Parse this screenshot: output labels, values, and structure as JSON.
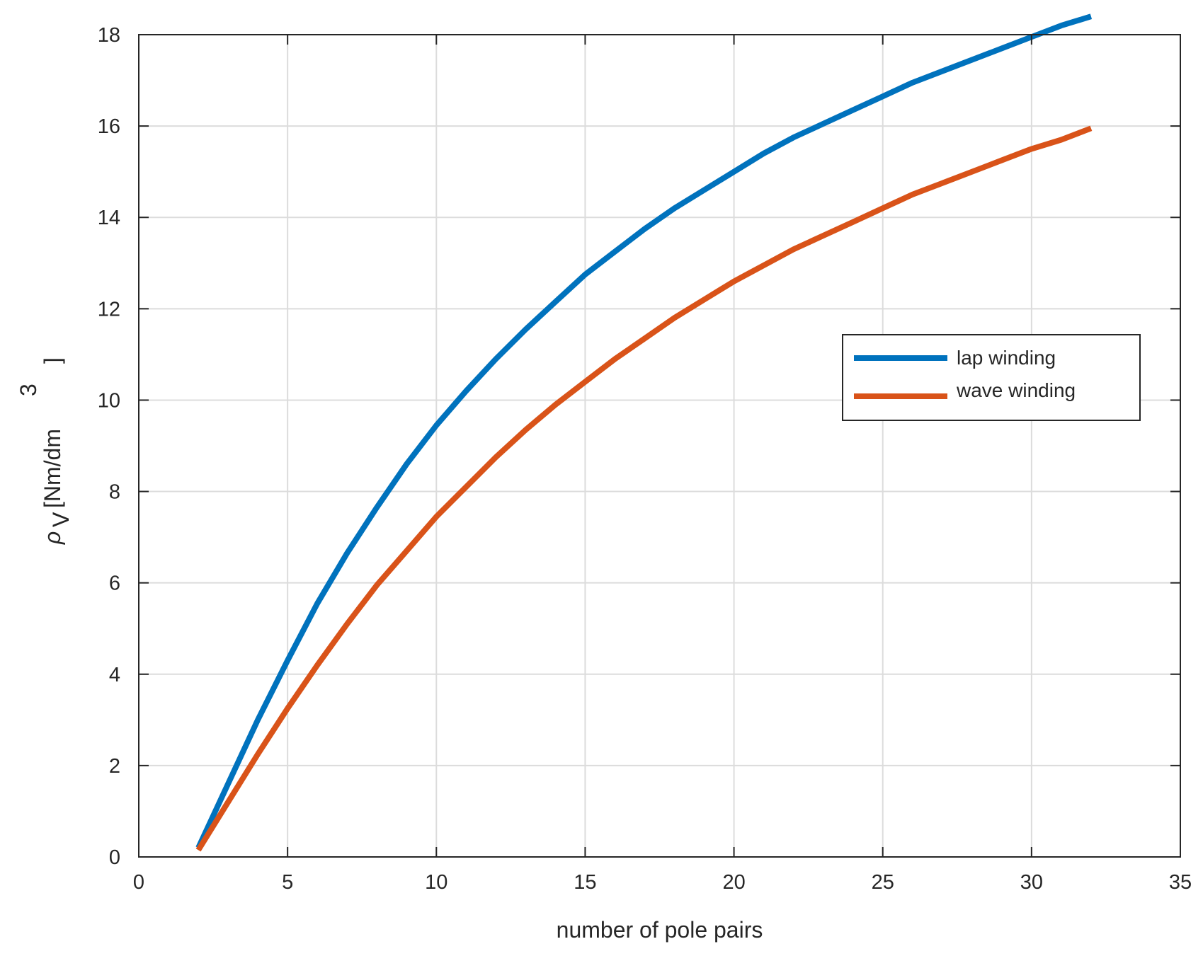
{
  "chart_data": {
    "type": "line",
    "title": "",
    "xlabel": "number of pole pairs",
    "ylabel": {
      "symbol": "ρ",
      "subscript": "V",
      "unit_open": "[Nm/dm",
      "unit_exponent": "3",
      "unit_close": "]"
    },
    "xlim": [
      0,
      35
    ],
    "ylim": [
      0,
      18
    ],
    "xticks": [
      0,
      5,
      10,
      15,
      20,
      25,
      30,
      35
    ],
    "yticks": [
      0,
      2,
      4,
      6,
      8,
      10,
      12,
      14,
      16,
      18
    ],
    "xtick_labels": [
      "0",
      "5",
      "10",
      "15",
      "20",
      "25",
      "30",
      "35"
    ],
    "ytick_labels": [
      "0",
      "2",
      "4",
      "6",
      "8",
      "10",
      "12",
      "14",
      "16",
      "18"
    ],
    "grid": true,
    "legend_position": "right",
    "series": [
      {
        "name": "lap winding",
        "color": "#0072BD",
        "x": [
          2,
          3,
          4,
          5,
          6,
          7,
          8,
          9,
          10,
          11,
          12,
          13,
          14,
          15,
          16,
          17,
          18,
          19,
          20,
          21,
          22,
          23,
          24,
          25,
          26,
          27,
          28,
          29,
          30,
          31,
          32
        ],
        "y": [
          0.2,
          1.6,
          3.0,
          4.3,
          5.55,
          6.65,
          7.65,
          8.6,
          9.45,
          10.2,
          10.9,
          11.55,
          12.15,
          12.75,
          13.25,
          13.75,
          14.2,
          14.6,
          15.0,
          15.4,
          15.75,
          16.05,
          16.35,
          16.65,
          16.95,
          17.2,
          17.45,
          17.7,
          17.95,
          18.2,
          18.4
        ]
      },
      {
        "name": "wave winding",
        "color": "#D95319",
        "x": [
          2,
          3,
          4,
          5,
          6,
          7,
          8,
          9,
          10,
          11,
          12,
          13,
          14,
          15,
          16,
          17,
          18,
          19,
          20,
          21,
          22,
          23,
          24,
          25,
          26,
          27,
          28,
          29,
          30,
          31,
          32
        ],
        "y": [
          0.15,
          1.2,
          2.25,
          3.25,
          4.2,
          5.1,
          5.95,
          6.7,
          7.45,
          8.1,
          8.75,
          9.35,
          9.9,
          10.4,
          10.9,
          11.35,
          11.8,
          12.2,
          12.6,
          12.95,
          13.3,
          13.6,
          13.9,
          14.2,
          14.5,
          14.75,
          15.0,
          15.25,
          15.5,
          15.7,
          15.95
        ]
      }
    ]
  }
}
